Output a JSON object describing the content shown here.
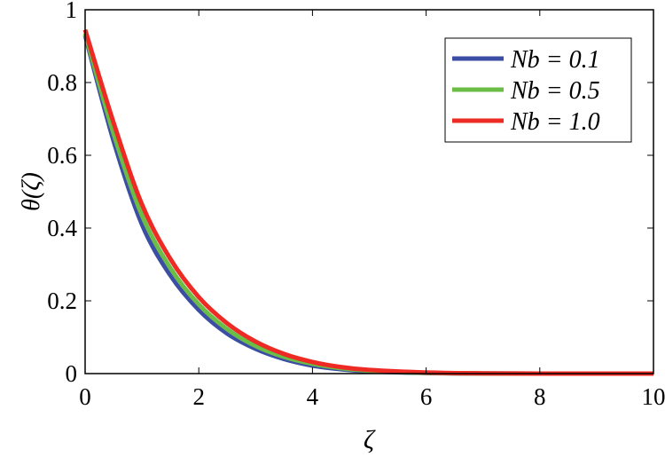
{
  "chart_data": {
    "type": "line",
    "xlabel": "ζ",
    "ylabel": "θ(ζ)",
    "xlim": [
      0,
      10
    ],
    "ylim": [
      0,
      1
    ],
    "xticks": [
      "0",
      "2",
      "4",
      "6",
      "8",
      "10"
    ],
    "yticks": [
      "0",
      "0.2",
      "0.4",
      "0.6",
      "0.8",
      "1"
    ],
    "grid": false,
    "legend_position": "top-right",
    "x": [
      0,
      0.5,
      1,
      1.5,
      2,
      2.5,
      3,
      3.5,
      4,
      4.5,
      5,
      6,
      7,
      8,
      9,
      10
    ],
    "series": [
      {
        "name": "Nb = 0.1",
        "color": "#3b4ea3",
        "values": [
          0.93,
          0.64,
          0.41,
          0.27,
          0.175,
          0.11,
          0.068,
          0.04,
          0.022,
          0.012,
          0.006,
          0.0015,
          0.0003,
          0,
          0,
          0
        ]
      },
      {
        "name": "Nb = 0.5",
        "color": "#6cbd45",
        "values": [
          0.935,
          0.66,
          0.435,
          0.29,
          0.19,
          0.122,
          0.076,
          0.046,
          0.027,
          0.015,
          0.008,
          0.002,
          0.0004,
          0,
          0,
          0
        ]
      },
      {
        "name": "Nb = 1.0",
        "color": "#ee2a24",
        "values": [
          0.945,
          0.69,
          0.465,
          0.315,
          0.21,
          0.138,
          0.088,
          0.054,
          0.032,
          0.018,
          0.01,
          0.003,
          0.0006,
          0,
          0,
          0
        ]
      }
    ]
  }
}
